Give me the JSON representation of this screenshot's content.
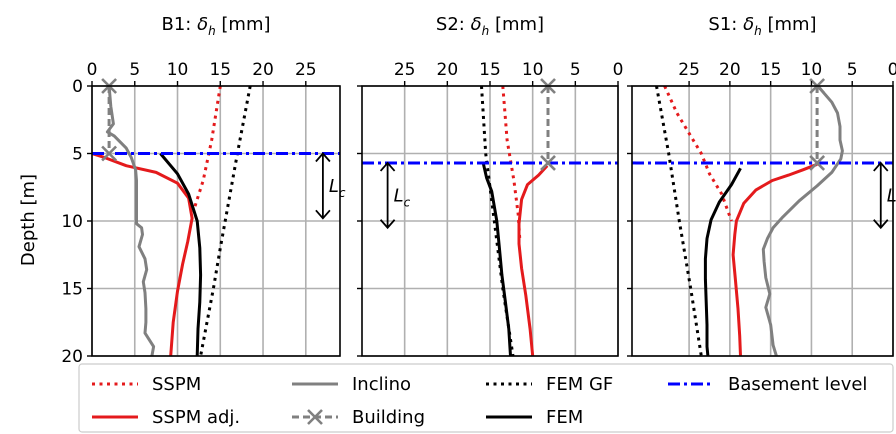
{
  "colors": {
    "sspm": "#e41a1c",
    "sspm_adj": "#e41a1c",
    "inclino": "#808080",
    "building": "#808080",
    "fem_gf": "#000000",
    "fem": "#000000",
    "basement": "#0000ff"
  },
  "chart_data": [
    {
      "type": "line",
      "panel": "B1",
      "title": "B1: δh [mm]",
      "xlabel": "δh [mm]",
      "ylabel": "Depth [m]",
      "xlim": [
        0,
        29
      ],
      "x_inverted": false,
      "ylim": [
        0,
        20
      ],
      "y_inverted": true,
      "x_ticks": [
        0,
        5,
        10,
        15,
        20,
        25
      ],
      "y_ticks": [
        0,
        5,
        10,
        15,
        20
      ],
      "grid": true,
      "basement_level": 5,
      "lc": {
        "x": 27,
        "from": 5,
        "to": 9.8,
        "label": "Lc"
      },
      "series": [
        {
          "key": "sspm",
          "name": "SSPM",
          "points": [
            [
              15,
              0
            ],
            [
              14,
              4
            ],
            [
              13,
              7
            ],
            [
              12,
              9
            ]
          ]
        },
        {
          "key": "sspm_adj",
          "name": "SSPM adj.",
          "points": [
            [
              0,
              5
            ],
            [
              1.5,
              5.3
            ],
            [
              4,
              5.9
            ],
            [
              7.5,
              6.4
            ],
            [
              10,
              7.2
            ],
            [
              11.3,
              8.3
            ],
            [
              11.7,
              9.8
            ],
            [
              11.2,
              11.5
            ],
            [
              10.6,
              13.2
            ],
            [
              10,
              15.2
            ],
            [
              9.5,
              17.5
            ],
            [
              9.2,
              20
            ]
          ]
        },
        {
          "key": "inclino",
          "name": "Inclino",
          "points": [
            [
              2,
              0
            ],
            [
              2.2,
              1.5
            ],
            [
              2.5,
              2.8
            ],
            [
              1.8,
              3.4
            ],
            [
              2.6,
              3.7
            ],
            [
              4,
              4.6
            ],
            [
              4.6,
              5.3
            ],
            [
              5.1,
              6.2
            ],
            [
              5.2,
              7.0
            ],
            [
              5.2,
              10.2
            ],
            [
              5.8,
              10.5
            ],
            [
              5.9,
              11.0
            ],
            [
              5.5,
              11.9
            ],
            [
              6.2,
              12.8
            ],
            [
              6.4,
              13.6
            ],
            [
              6.0,
              14.5
            ],
            [
              6.2,
              15.3
            ],
            [
              6.3,
              16.5
            ],
            [
              6.3,
              17.5
            ],
            [
              6.2,
              18.3
            ],
            [
              7.2,
              19.3
            ],
            [
              7.0,
              20
            ]
          ]
        },
        {
          "key": "building",
          "name": "Building",
          "points": [
            [
              2,
              0
            ],
            [
              2,
              5
            ]
          ],
          "marker_at": [
            [
              2,
              0
            ],
            [
              2,
              5
            ]
          ]
        },
        {
          "key": "fem_gf",
          "name": "FEM GF",
          "points": [
            [
              18.5,
              0
            ],
            [
              17,
              5
            ],
            [
              15,
              12
            ],
            [
              14.2,
              15
            ],
            [
              12.7,
              20
            ]
          ]
        },
        {
          "key": "fem",
          "name": "FEM",
          "points": [
            [
              8,
              5
            ],
            [
              10,
              6.5
            ],
            [
              11.3,
              8
            ],
            [
              12.3,
              10
            ],
            [
              12.6,
              12
            ],
            [
              12.7,
              14
            ],
            [
              12.6,
              16
            ],
            [
              12.4,
              18
            ],
            [
              12.3,
              20
            ]
          ]
        }
      ]
    },
    {
      "type": "line",
      "panel": "S2",
      "title": "S2: δh [mm]",
      "xlabel": "δh [mm]",
      "xlim": [
        0,
        30
      ],
      "x_inverted": true,
      "ylim": [
        0,
        20
      ],
      "y_inverted": true,
      "x_ticks": [
        25,
        20,
        15,
        10,
        5,
        0
      ],
      "y_ticks": [
        0,
        5,
        10,
        15,
        20
      ],
      "grid": true,
      "basement_level": 5.7,
      "lc": {
        "x": 27,
        "from": 5.7,
        "to": 10.5,
        "label": "Lc"
      },
      "series": [
        {
          "key": "sspm",
          "name": "SSPM",
          "points": [
            [
              13.5,
              0
            ],
            [
              13,
              4
            ],
            [
              12.2,
              7
            ],
            [
              11.7,
              9.5
            ],
            [
              11.5,
              11.5
            ]
          ]
        },
        {
          "key": "sspm_adj",
          "name": "SSPM adj.",
          "points": [
            [
              8.3,
              5.9
            ],
            [
              9.3,
              6.6
            ],
            [
              10.6,
              7.3
            ],
            [
              11.3,
              8.4
            ],
            [
              11.6,
              10.2
            ],
            [
              11.6,
              11.7
            ],
            [
              11.3,
              13.5
            ],
            [
              10.8,
              15.5
            ],
            [
              10.3,
              18
            ],
            [
              10.0,
              20
            ]
          ]
        },
        {
          "key": "building",
          "name": "Building",
          "points": [
            [
              8.2,
              0
            ],
            [
              8.2,
              5.7
            ]
          ],
          "marker_at": [
            [
              8.2,
              0
            ],
            [
              8.2,
              5.7
            ]
          ]
        },
        {
          "key": "fem_gf",
          "name": "FEM GF",
          "points": [
            [
              16,
              0
            ],
            [
              15.5,
              5
            ],
            [
              14.5,
              10
            ],
            [
              13.5,
              15
            ],
            [
              12.3,
              20
            ]
          ]
        },
        {
          "key": "fem",
          "name": "FEM",
          "points": [
            [
              15.8,
              5.7
            ],
            [
              15.4,
              6.8
            ],
            [
              14.8,
              7.8
            ],
            [
              14.2,
              10
            ],
            [
              13.9,
              12
            ],
            [
              13.6,
              14
            ],
            [
              13.2,
              16
            ],
            [
              12.8,
              18
            ],
            [
              12.6,
              20
            ]
          ]
        }
      ]
    },
    {
      "type": "line",
      "panel": "S1",
      "title": "S1: δh [mm]",
      "xlabel": "δh [mm]",
      "xlim": [
        0,
        32
      ],
      "x_inverted": true,
      "ylim": [
        0,
        20
      ],
      "y_inverted": true,
      "x_ticks": [
        25,
        20,
        15,
        10,
        5,
        0
      ],
      "y_ticks": [
        0,
        5,
        10,
        15,
        20
      ],
      "grid": true,
      "basement_level": 5.7,
      "lc": {
        "x": 1.5,
        "from": 5.7,
        "to": 10.5,
        "label": "Lc"
      },
      "series": [
        {
          "key": "sspm",
          "name": "SSPM",
          "points": [
            [
              28,
              0
            ],
            [
              26.5,
              2
            ],
            [
              25,
              3.5
            ],
            [
              23.5,
              5
            ],
            [
              22.5,
              6.5
            ],
            [
              21,
              8
            ],
            [
              19.8,
              10
            ]
          ]
        },
        {
          "key": "sspm_adj",
          "name": "SSPM adj.",
          "points": [
            [
              9.3,
              5.8
            ],
            [
              11,
              6.2
            ],
            [
              12.8,
              6.6
            ],
            [
              14.8,
              7.0
            ],
            [
              16.8,
              7.7
            ],
            [
              18.3,
              8.7
            ],
            [
              19.2,
              10.0
            ],
            [
              19.4,
              11.0
            ],
            [
              19.6,
              12.5
            ],
            [
              19.3,
              14.5
            ],
            [
              19.0,
              16.5
            ],
            [
              18.8,
              18.5
            ],
            [
              18.7,
              20
            ]
          ]
        },
        {
          "key": "inclino",
          "name": "Inclino",
          "points": [
            [
              9.2,
              0
            ],
            [
              8.5,
              0.5
            ],
            [
              7.5,
              1.2
            ],
            [
              6.8,
              2.0
            ],
            [
              6.5,
              3.0
            ],
            [
              6.5,
              4.0
            ],
            [
              6.2,
              4.8
            ],
            [
              6.4,
              5.4
            ],
            [
              7.5,
              6.4
            ],
            [
              9.3,
              7.4
            ],
            [
              11.5,
              8.5
            ],
            [
              13.5,
              9.7
            ],
            [
              14.7,
              10.5
            ],
            [
              15.4,
              11.3
            ],
            [
              15.9,
              12.1
            ],
            [
              15.8,
              13.0
            ],
            [
              15.6,
              14.2
            ],
            [
              15.1,
              15.4
            ],
            [
              15.6,
              16.4
            ],
            [
              15.0,
              17.7
            ],
            [
              14.7,
              19.2
            ],
            [
              14.3,
              20
            ]
          ]
        },
        {
          "key": "building",
          "name": "Building",
          "points": [
            [
              9.3,
              0
            ],
            [
              9.3,
              5.7
            ]
          ],
          "marker_at": [
            [
              9.3,
              0
            ],
            [
              9.3,
              5.7
            ]
          ]
        },
        {
          "key": "fem_gf",
          "name": "FEM GF",
          "points": [
            [
              29,
              0
            ],
            [
              27.5,
              5
            ],
            [
              26.2,
              10
            ],
            [
              24.8,
              15
            ],
            [
              23.5,
              20
            ]
          ]
        },
        {
          "key": "fem",
          "name": "FEM",
          "points": [
            [
              18.7,
              6.1
            ],
            [
              19.8,
              7.3
            ],
            [
              21.3,
              8.6
            ],
            [
              22.3,
              9.9
            ],
            [
              22.8,
              11.3
            ],
            [
              23.0,
              12.8
            ],
            [
              23.0,
              14.3
            ],
            [
              22.9,
              16.0
            ],
            [
              22.8,
              17.7
            ],
            [
              22.8,
              19.3
            ],
            [
              22.7,
              20
            ]
          ]
        }
      ]
    }
  ],
  "legend": {
    "placement": "bottom",
    "entries": [
      {
        "key": "sspm",
        "label": "SSPM"
      },
      {
        "key": "inclino",
        "label": "Inclino"
      },
      {
        "key": "fem_gf",
        "label": "FEM GF"
      },
      {
        "key": "basement",
        "label": "Basement level"
      },
      {
        "key": "sspm_adj",
        "label": "SSPM adj."
      },
      {
        "key": "building",
        "label": "Building"
      },
      {
        "key": "fem",
        "label": "FEM"
      }
    ]
  }
}
